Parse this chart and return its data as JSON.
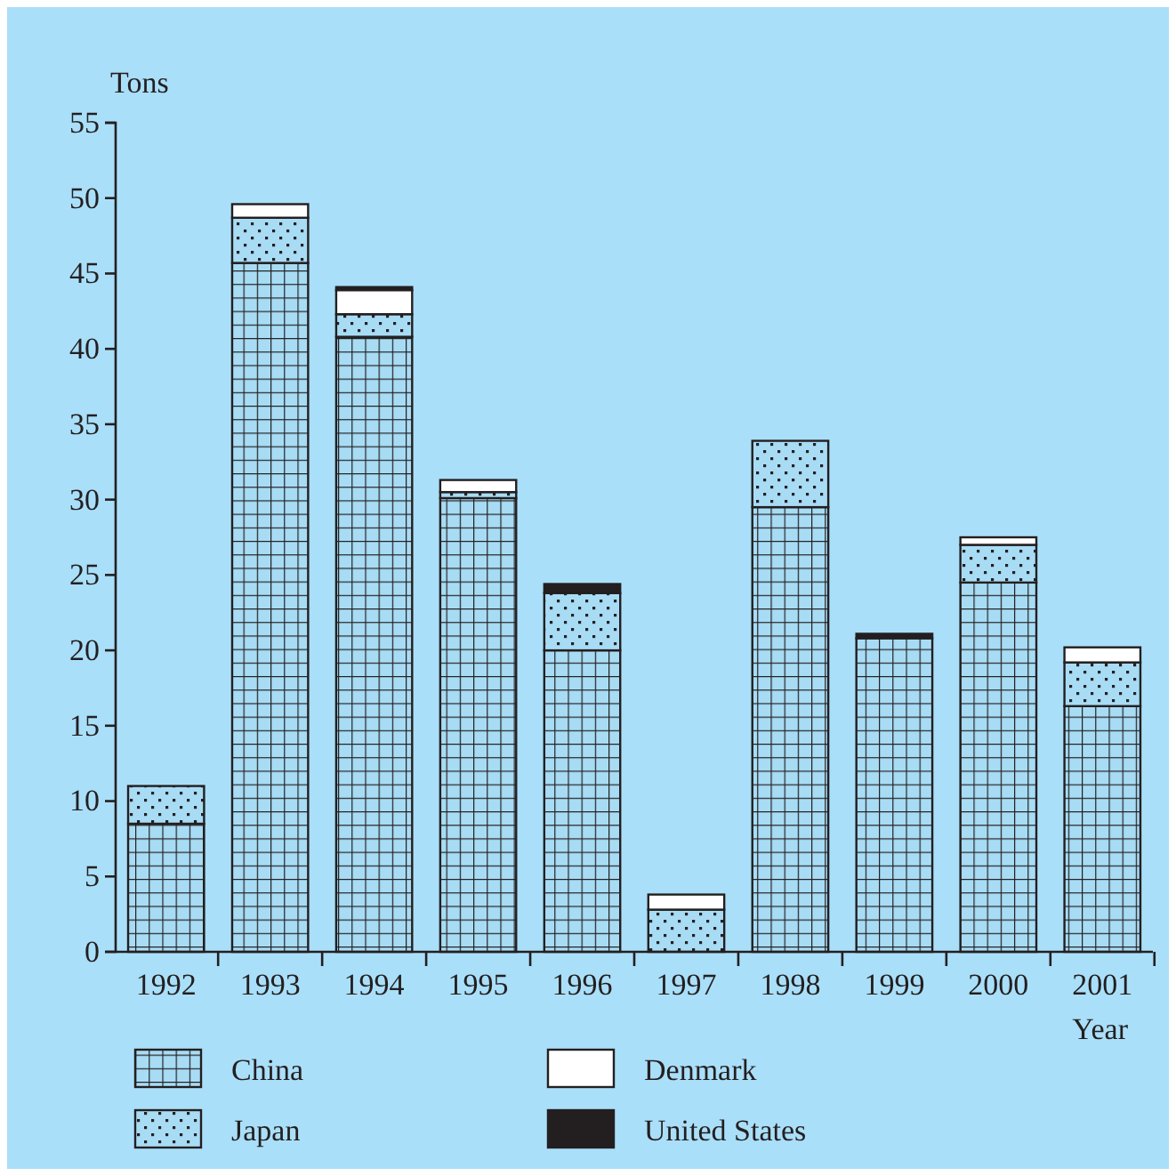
{
  "chart_data": {
    "type": "bar",
    "stacked": true,
    "xlabel": "Year",
    "ylabel": "Tons",
    "categories": [
      "1992",
      "1993",
      "1994",
      "1995",
      "1996",
      "1997",
      "1998",
      "1999",
      "2000",
      "2001"
    ],
    "series": [
      {
        "name": "China",
        "color": "#a8dcf5",
        "values": [
          8.5,
          45.7,
          40.8,
          30.1,
          20,
          0,
          29.5,
          20.8,
          24.5,
          16.3
        ]
      },
      {
        "name": "Japan",
        "color": "#a8dcf5",
        "values": [
          2.5,
          3,
          1.5,
          0.4,
          3.8,
          2.8,
          4.4,
          0,
          2.5,
          2.9
        ]
      },
      {
        "name": "Denmark",
        "color": "#ffffff",
        "values": [
          0,
          0.9,
          1.6,
          0.8,
          0,
          1,
          0,
          0,
          0.5,
          1
        ]
      },
      {
        "name": "United States",
        "color": "#231f20",
        "values": [
          0,
          0,
          0.2,
          0,
          0.6,
          0,
          0,
          0.3,
          0,
          0
        ]
      }
    ],
    "ylim": [
      0,
      55
    ],
    "yticks": [
      0,
      5,
      10,
      15,
      20,
      25,
      30,
      35,
      40,
      45,
      50,
      55
    ],
    "grid": false,
    "legend": "bottom"
  }
}
